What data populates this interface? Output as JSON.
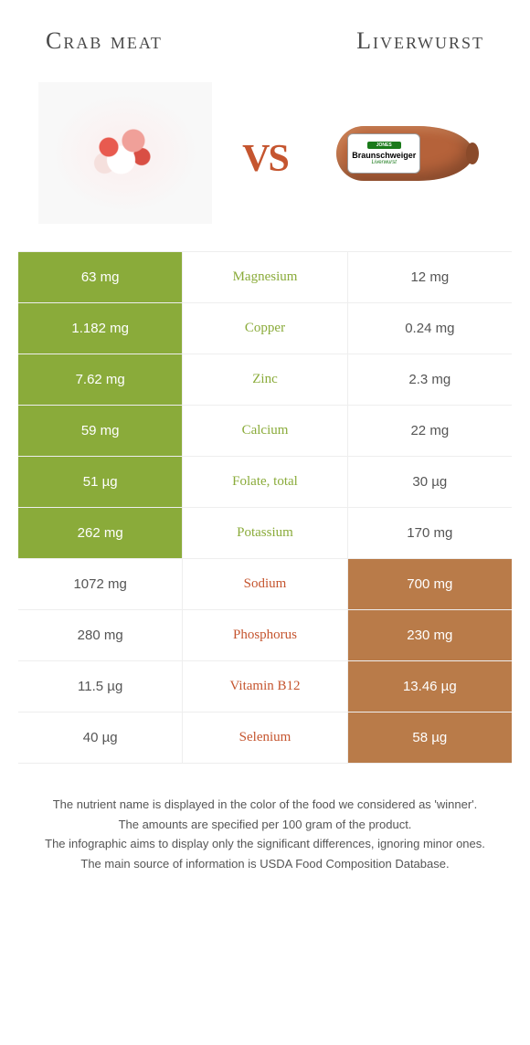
{
  "header": {
    "left": "Crab meat",
    "right": "Liverwurst"
  },
  "vs": "vs",
  "sausage_label": {
    "brand": "JONES",
    "name": "Braunschweiger",
    "sub": "Liverwurst"
  },
  "colors": {
    "green": "#8aab3a",
    "brown": "#b97b49",
    "green_text": "#8aab3a",
    "brown_text": "#c5552f"
  },
  "rows": [
    {
      "left": "63 mg",
      "nutrient": "Magnesium",
      "right": "12 mg",
      "winner": "left"
    },
    {
      "left": "1.182 mg",
      "nutrient": "Copper",
      "right": "0.24 mg",
      "winner": "left"
    },
    {
      "left": "7.62 mg",
      "nutrient": "Zinc",
      "right": "2.3 mg",
      "winner": "left"
    },
    {
      "left": "59 mg",
      "nutrient": "Calcium",
      "right": "22 mg",
      "winner": "left"
    },
    {
      "left": "51 µg",
      "nutrient": "Folate, total",
      "right": "30 µg",
      "winner": "left"
    },
    {
      "left": "262 mg",
      "nutrient": "Potassium",
      "right": "170 mg",
      "winner": "left"
    },
    {
      "left": "1072 mg",
      "nutrient": "Sodium",
      "right": "700 mg",
      "winner": "right"
    },
    {
      "left": "280 mg",
      "nutrient": "Phosphorus",
      "right": "230 mg",
      "winner": "right"
    },
    {
      "left": "11.5 µg",
      "nutrient": "Vitamin B12",
      "right": "13.46 µg",
      "winner": "right"
    },
    {
      "left": "40 µg",
      "nutrient": "Selenium",
      "right": "58 µg",
      "winner": "right"
    }
  ],
  "footer": [
    "The nutrient name is displayed in the color of the food we considered as 'winner'.",
    "The amounts are specified per 100 gram of the product.",
    "The infographic aims to display only the significant differences, ignoring minor ones.",
    "The main source of information is USDA Food Composition Database."
  ]
}
